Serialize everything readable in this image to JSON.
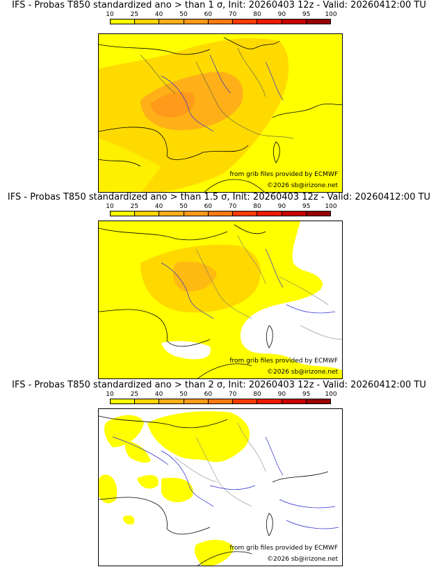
{
  "scale": {
    "labels": [
      "10",
      "25",
      "40",
      "50",
      "60",
      "70",
      "80",
      "90",
      "95",
      "100"
    ],
    "colors": [
      "#ffff00",
      "#ffd400",
      "#ffae1a",
      "#ff9a1a",
      "#ff7a10",
      "#ff3c00",
      "#ee1a00",
      "#c80000",
      "#960000",
      "#5a0000"
    ]
  },
  "credits": {
    "grib": "from grib files provided by ECMWF",
    "copyright": "©2026 sb@irizone.net"
  },
  "panels": [
    {
      "title": "IFS - Probas T850  standardized ano > than 1 σ, Init: 20260403 12z - Valid: 20260412:00 TU"
    },
    {
      "title": "IFS - Probas T850  standardized ano > than 1.5 σ, Init: 20260403 12z - Valid: 20260412:00 TU"
    },
    {
      "title": "IFS - Probas T850  standardized ano > than 2 σ, Init: 20260403 12z - Valid: 20260412:00 TU"
    }
  ]
}
